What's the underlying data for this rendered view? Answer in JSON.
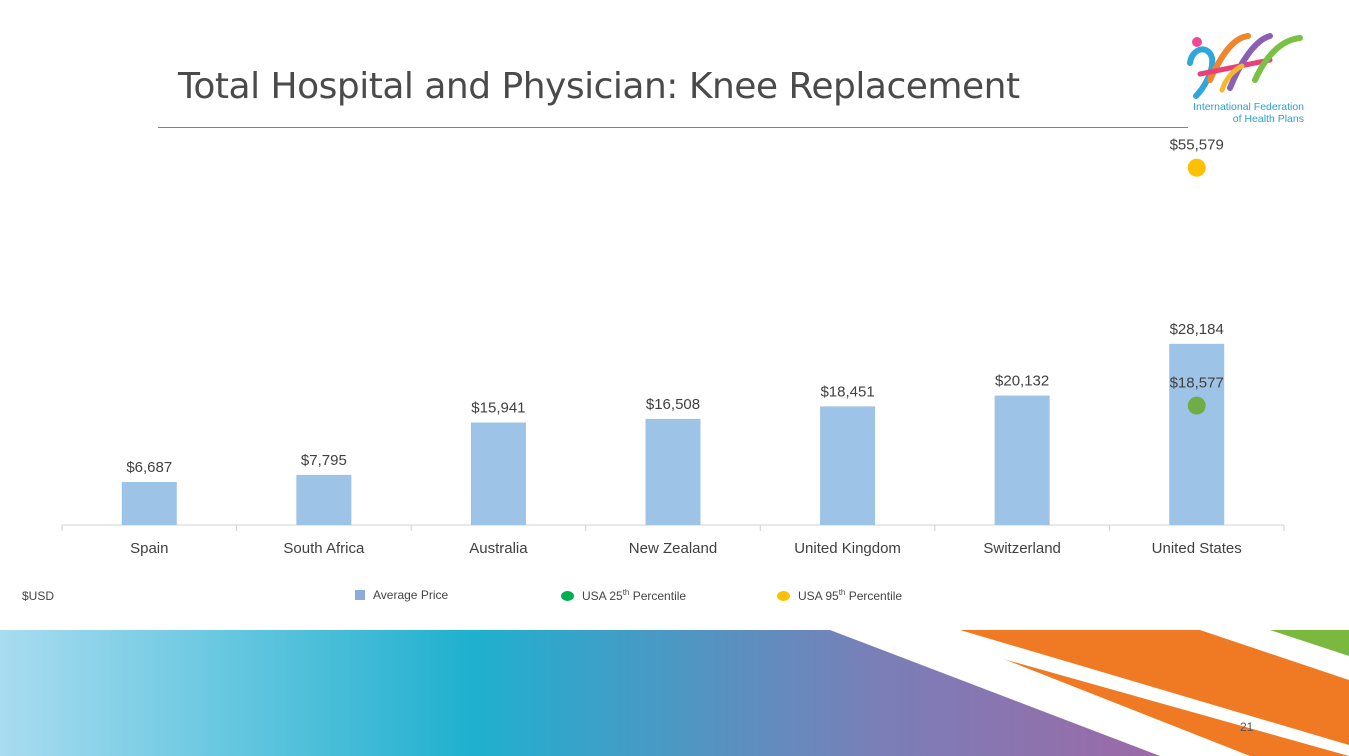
{
  "slide": {
    "title": "Total Hospital and Physician: Knee Replacement",
    "page_number": "21",
    "unit_label": "$USD"
  },
  "logo": {
    "text_line1": "International Federation",
    "text_line2": "of Health Plans"
  },
  "legend": {
    "average": "Average Price",
    "p25_prefix": "USA 25",
    "p25_sup": "th",
    "p25_suffix": " Percentile",
    "p95_prefix": "USA 95",
    "p95_sup": "th",
    "p95_suffix": " Percentile"
  },
  "colors": {
    "bar": "#9dc3e6",
    "p25": "#70ad47",
    "p95": "#ffc000",
    "legend_p25": "#00b050",
    "axis": "#d0d0d0",
    "text": "#404040"
  },
  "chart_data": {
    "type": "bar",
    "title": "Total Hospital and Physician: Knee Replacement",
    "ylabel": "$USD",
    "ylim": [
      0,
      56000
    ],
    "grid": false,
    "legend_position": "bottom",
    "categories": [
      "Spain",
      "South Africa",
      "Australia",
      "New Zealand",
      "United Kingdom",
      "Switzerland",
      "United States"
    ],
    "series": [
      {
        "name": "Average Price",
        "values": [
          6687,
          7795,
          15941,
          16508,
          18451,
          20132,
          28184
        ],
        "labels": [
          "$6,687",
          "$7,795",
          "$15,941",
          "$16,508",
          "$18,451",
          "$20,132",
          "$28,184"
        ]
      },
      {
        "name": "USA 25th Percentile",
        "points": [
          {
            "category": "United States",
            "value": 18577,
            "label": "$18,577"
          }
        ]
      },
      {
        "name": "USA 95th Percentile",
        "points": [
          {
            "category": "United States",
            "value": 55579,
            "label": "$55,579"
          }
        ]
      }
    ]
  }
}
